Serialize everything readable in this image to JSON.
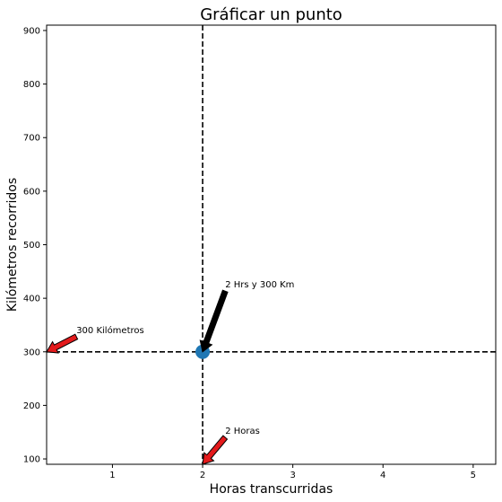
{
  "chart_data": {
    "type": "scatter",
    "title": "Gráficar un punto",
    "xlabel": "Horas transcurridas",
    "ylabel": "Kilómetros recorridos",
    "xlim": [
      0.27,
      5.25
    ],
    "ylim": [
      90,
      910
    ],
    "xticks": [
      1,
      2,
      3,
      4,
      5
    ],
    "yticks": [
      100,
      200,
      300,
      400,
      500,
      600,
      700,
      800,
      900
    ],
    "grid": false,
    "points": [
      {
        "x": 2,
        "y": 300,
        "color": "#1f77b4"
      }
    ],
    "reference_lines": [
      {
        "orientation": "vertical",
        "value": 2,
        "style": "dashed",
        "color": "#000000"
      },
      {
        "orientation": "horizontal",
        "value": 300,
        "style": "dashed",
        "color": "#000000"
      }
    ],
    "annotations": [
      {
        "text": "2 Hrs y 300 Km",
        "x": 2,
        "y": 300,
        "text_x": 2.25,
        "text_y": 425,
        "arrow_color": "#000000"
      },
      {
        "text": "300 Kilómetros",
        "x": 0.27,
        "y": 300,
        "text_x": 0.6,
        "text_y": 340,
        "arrow_color": "#e31a1c"
      },
      {
        "text": "2 Horas",
        "x": 2,
        "y": 90,
        "text_x": 2.25,
        "text_y": 152,
        "arrow_color": "#e31a1c"
      }
    ]
  }
}
